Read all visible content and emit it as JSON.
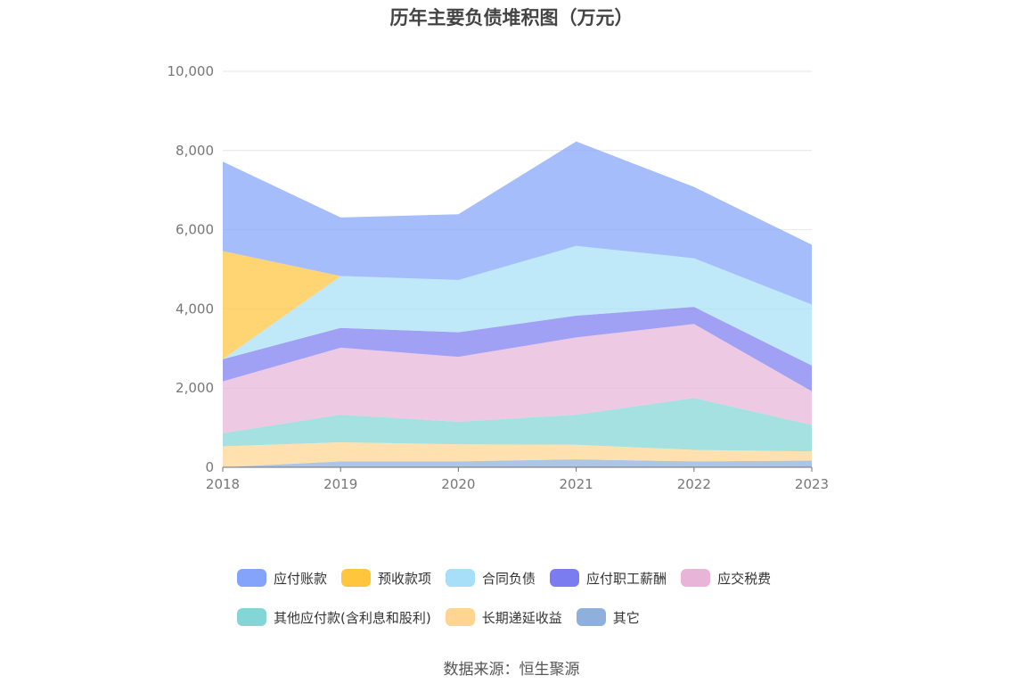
{
  "chart_data": {
    "type": "area",
    "stacked": true,
    "title": "历年主要负债堆积图（万元）",
    "categories": [
      "2018",
      "2019",
      "2020",
      "2021",
      "2022",
      "2023"
    ],
    "ylim": [
      0,
      10000
    ],
    "yticks": [
      "0",
      "2,000",
      "4,000",
      "6,000",
      "8,000",
      "10,000"
    ],
    "ytick_values": [
      0,
      2000,
      4000,
      6000,
      8000,
      10000
    ],
    "grid": true,
    "legend_position": "bottom",
    "series": [
      {
        "name": "其它",
        "color": "#8fb0dd",
        "values": [
          0,
          150,
          150,
          200,
          150,
          170
        ]
      },
      {
        "name": "长期递延收益",
        "color": "#ffd591",
        "values": [
          530,
          480,
          430,
          370,
          290,
          230
        ]
      },
      {
        "name": "其他应付款(含利息和股利)",
        "color": "#84d6d6",
        "values": [
          330,
          700,
          570,
          760,
          1310,
          670
        ]
      },
      {
        "name": "应交税费",
        "color": "#e8b4d8",
        "values": [
          1310,
          1690,
          1640,
          1950,
          1870,
          850
        ]
      },
      {
        "name": "应付职工薪酬",
        "color": "#7b7cf0",
        "values": [
          560,
          500,
          620,
          550,
          430,
          650
        ]
      },
      {
        "name": "合同负债",
        "color": "#a6dff7",
        "values": [
          0,
          1310,
          1320,
          1760,
          1230,
          1540
        ]
      },
      {
        "name": "预收款项",
        "color": "#ffc53d",
        "values": [
          2730,
          0,
          0,
          0,
          0,
          0
        ]
      },
      {
        "name": "应付账款",
        "color": "#84a4fb",
        "values": [
          2260,
          1480,
          1660,
          2640,
          1800,
          1510
        ]
      }
    ]
  },
  "legend_order": [
    "应付账款",
    "预收款项",
    "合同负债",
    "应付职工薪酬",
    "应交税费",
    "其他应付款(含利息和股利)",
    "长期递延收益",
    "其它"
  ],
  "source": "数据来源：恒生聚源"
}
